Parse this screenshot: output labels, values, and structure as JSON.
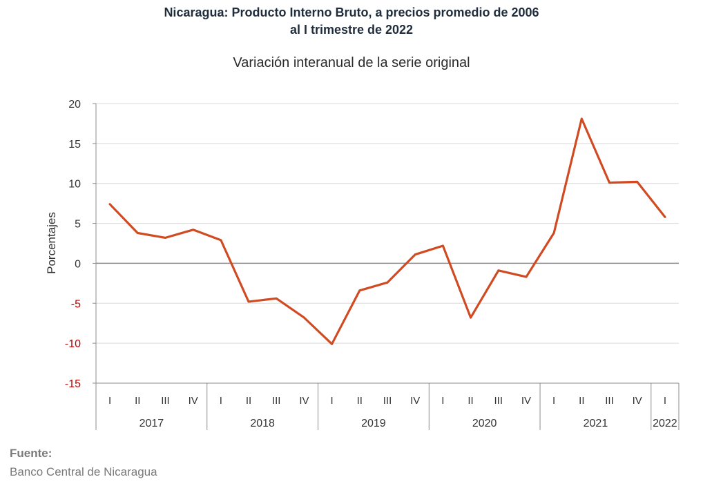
{
  "header": {
    "title_line1": "Nicaragua: Producto Interno Bruto, a precios promedio de 2006",
    "title_line2": "al I trimestre de 2022",
    "subtitle": "Variación interanual de la serie original"
  },
  "footer": {
    "source_label": "Fuente:",
    "source_text": "Banco Central de Nicaragua"
  },
  "chart_data": {
    "type": "line",
    "title": "Nicaragua: Producto Interno Bruto, a precios promedio de 2006 al I trimestre de 2022",
    "subtitle": "Variación interanual de la serie original",
    "xlabel": "",
    "ylabel": "Porcentajes",
    "ylim": [
      -15,
      20
    ],
    "yticks": [
      20,
      15,
      10,
      5,
      0,
      -5,
      -10,
      -15
    ],
    "negative_tick_color": "#c00000",
    "grid": true,
    "line_color": "#d04a22",
    "categories": [
      "I",
      "II",
      "III",
      "IV",
      "I",
      "II",
      "III",
      "IV",
      "I",
      "II",
      "III",
      "IV",
      "I",
      "II",
      "III",
      "IV",
      "I",
      "II",
      "III",
      "IV",
      "I"
    ],
    "groups": [
      {
        "label": "2017",
        "count": 4
      },
      {
        "label": "2018",
        "count": 4
      },
      {
        "label": "2019",
        "count": 4
      },
      {
        "label": "2020",
        "count": 4
      },
      {
        "label": "2021",
        "count": 4
      },
      {
        "label": "2022",
        "count": 1
      }
    ],
    "series": [
      {
        "values": [
          7.4,
          3.8,
          3.2,
          4.2,
          2.9,
          -4.8,
          -4.4,
          -6.8,
          -10.1,
          -3.4,
          -2.4,
          1.1,
          2.2,
          -6.8,
          -0.9,
          -1.7,
          3.8,
          18.1,
          10.1,
          10.2,
          5.8
        ]
      }
    ]
  }
}
